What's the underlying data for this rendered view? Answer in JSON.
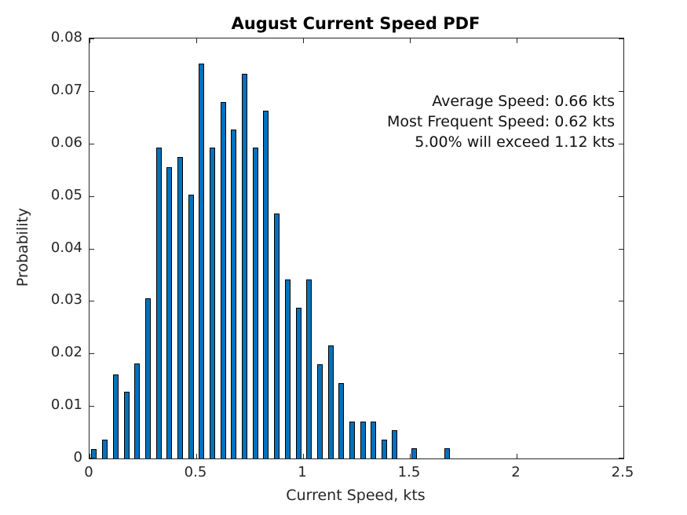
{
  "chart_data": {
    "type": "bar",
    "title": "August Current Speed PDF",
    "xlabel": "Current Speed, kts",
    "ylabel": "Probability",
    "xlim": [
      0,
      2.5
    ],
    "ylim": [
      0,
      0.08
    ],
    "grid": false,
    "legend": "none",
    "bar_color": "#0072BD",
    "bar_edge_color": "#000000",
    "x_ticks": [
      "0",
      "0.5",
      "1",
      "1.5",
      "2",
      "2.5"
    ],
    "y_ticks": [
      "0",
      "0.01",
      "0.02",
      "0.03",
      "0.04",
      "0.05",
      "0.06",
      "0.07",
      "0.08"
    ],
    "x": [
      0.022,
      0.072,
      0.123,
      0.173,
      0.223,
      0.274,
      0.324,
      0.374,
      0.424,
      0.475,
      0.525,
      0.575,
      0.626,
      0.676,
      0.726,
      0.777,
      0.827,
      0.877,
      0.927,
      0.978,
      1.028,
      1.078,
      1.129,
      1.179,
      1.229,
      1.28,
      1.33,
      1.38,
      1.43,
      1.52,
      1.675
    ],
    "values": [
      0.0016,
      0.0034,
      0.0159,
      0.0125,
      0.0179,
      0.0304,
      0.059,
      0.0554,
      0.0572,
      0.0501,
      0.075,
      0.059,
      0.0678,
      0.0625,
      0.0731,
      0.059,
      0.0661,
      0.0465,
      0.0339,
      0.0286,
      0.0339,
      0.0178,
      0.0214,
      0.0142,
      0.0069,
      0.0069,
      0.0069,
      0.0034,
      0.0053,
      0.0018,
      0.0018
    ],
    "annotations": {
      "line1": "Average Speed: 0.66 kts",
      "line2": "Most Frequent Speed: 0.62 kts",
      "line3": "5.00% will exceed 1.12 kts"
    }
  }
}
